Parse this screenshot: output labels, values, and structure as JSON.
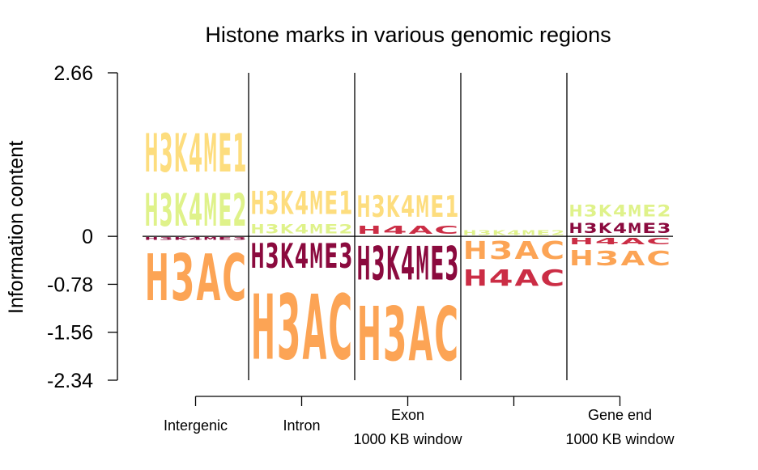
{
  "chart_data": {
    "type": "sequence-logo",
    "title": "Histone marks in various genomic regions",
    "ylabel": "Information content",
    "xlabel": "",
    "ylim": [
      -2.34,
      2.66
    ],
    "yticks": [
      "2.66",
      "0",
      "-0.78",
      "-1.56",
      "-2.34"
    ],
    "x_axis_labels": [
      {
        "lines": [
          "Intergenic"
        ]
      },
      {
        "lines": [
          "Intron"
        ]
      },
      {
        "lines": [
          "Exon",
          "1000 KB window"
        ]
      },
      {
        "lines": []
      },
      {
        "lines": [
          "Gene end",
          "1000 KB window"
        ]
      }
    ],
    "colors": {
      "H3K4ME1": "#FDDD7E",
      "H3K4ME2": "#DFF28A",
      "H3K4ME3": "#8B0A3E",
      "H4AC": "#CB2D45",
      "H3AC": "#FCA455"
    },
    "columns": [
      {
        "region": "Intergenic",
        "positive": [
          {
            "mark": "H3K4ME2",
            "value": 0.85
          },
          {
            "mark": "H3K4ME1",
            "value": 1.0
          }
        ],
        "negative": [
          {
            "mark": "H3K4ME3",
            "value": 0.07
          },
          {
            "mark": "H3AC",
            "value": 1.22
          }
        ]
      },
      {
        "region": "Intron",
        "positive": [
          {
            "mark": "H3K4ME2",
            "value": 0.24
          },
          {
            "mark": "H3K4ME1",
            "value": 0.6
          }
        ],
        "negative": [
          {
            "mark": "H3K4ME3",
            "value": 0.64
          },
          {
            "mark": "H3AC",
            "value": 1.7
          }
        ]
      },
      {
        "region": "Exon 1000 KB window",
        "positive": [
          {
            "mark": "H4AC",
            "value": 0.2
          },
          {
            "mark": "H3K4ME1",
            "value": 0.56
          }
        ],
        "negative": [
          {
            "mark": "H3K4ME3",
            "value": 0.88
          },
          {
            "mark": "H3AC",
            "value": 1.42
          }
        ]
      },
      {
        "region": "",
        "positive": [
          {
            "mark": "H3K4ME2",
            "value": 0.12
          }
        ],
        "negative": [
          {
            "mark": "H3AC",
            "value": 0.46
          },
          {
            "mark": "H4AC",
            "value": 0.43
          }
        ]
      },
      {
        "region": "Gene end 1000 KB window",
        "positive": [
          {
            "mark": "H3K4ME3",
            "value": 0.26
          },
          {
            "mark": "H3K4ME2",
            "value": 0.3
          }
        ],
        "negative": [
          {
            "mark": "H4AC",
            "value": 0.16
          },
          {
            "mark": "H3AC",
            "value": 0.39
          }
        ]
      }
    ]
  }
}
